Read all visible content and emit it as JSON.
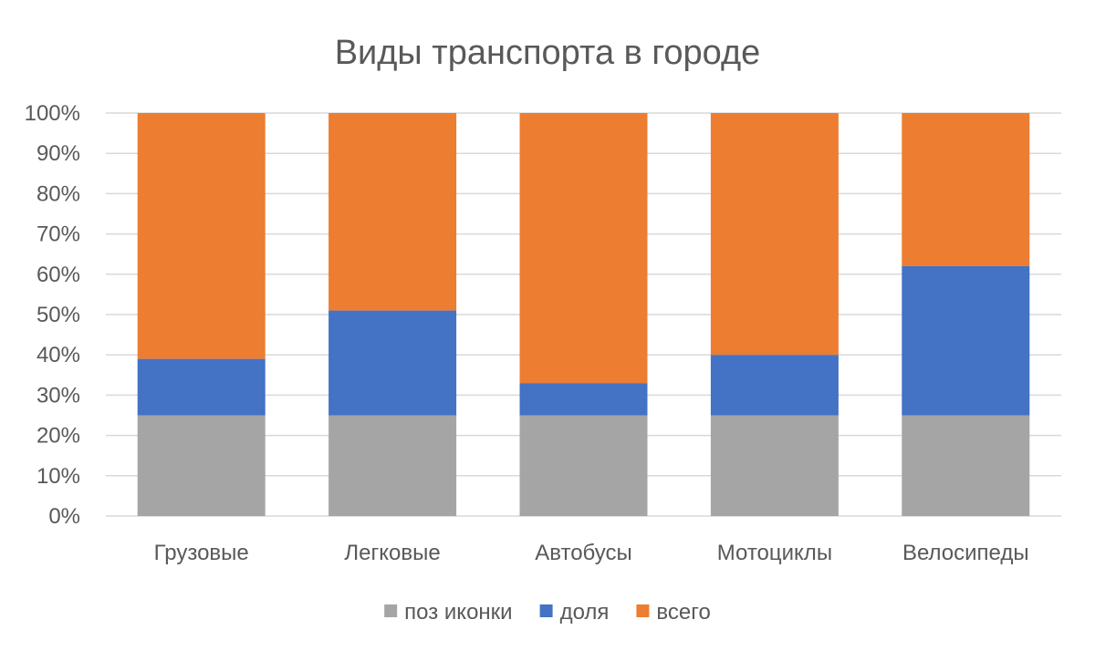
{
  "chart_data": {
    "type": "bar",
    "stacked": "percent",
    "title": "Виды транспорта в городе",
    "xlabel": "",
    "ylabel": "",
    "ylim": [
      0,
      100
    ],
    "y_ticks": [
      "0%",
      "10%",
      "20%",
      "30%",
      "40%",
      "50%",
      "60%",
      "70%",
      "80%",
      "90%",
      "100%"
    ],
    "grid": true,
    "legend_position": "bottom",
    "categories": [
      "Грузовые",
      "Легковые",
      "Автобусы",
      "Мотоциклы",
      "Велосипеды"
    ],
    "series": [
      {
        "name": "поз иконки",
        "color": "#a5a5a5",
        "values": [
          25,
          25,
          25,
          25,
          25
        ]
      },
      {
        "name": "доля",
        "color": "#4472c4",
        "values": [
          14,
          26,
          8,
          15,
          37
        ]
      },
      {
        "name": "всего",
        "color": "#ed7d31",
        "values": [
          61,
          49,
          67,
          60,
          38
        ]
      }
    ]
  }
}
